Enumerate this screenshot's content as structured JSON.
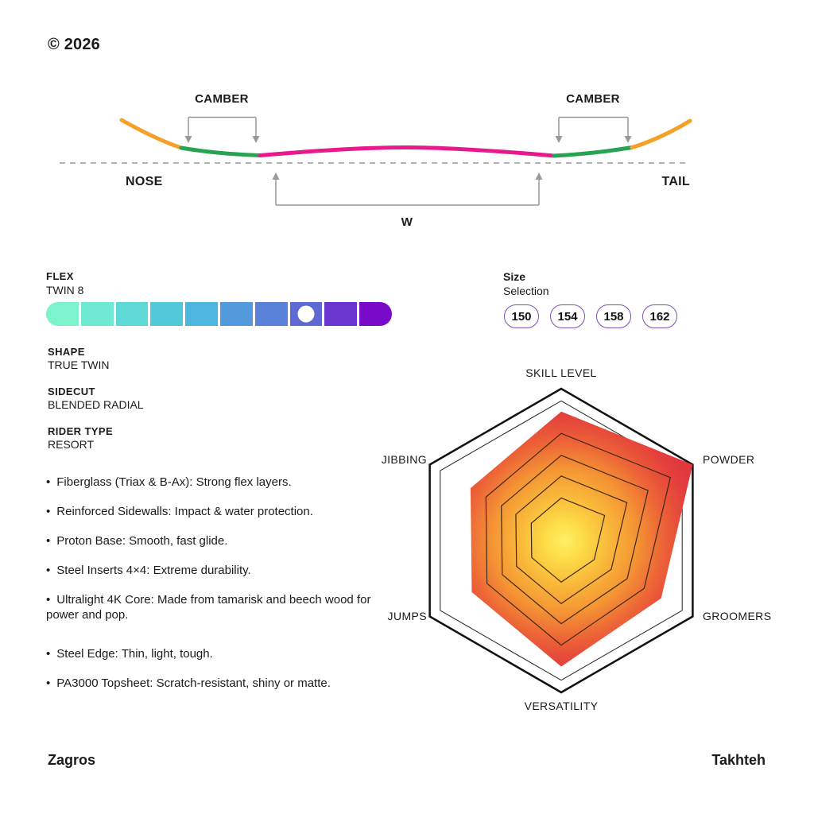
{
  "copyright": "© 2026",
  "profile_diagram": {
    "labels": {
      "camber_left": "CAMBER",
      "camber_right": "CAMBER",
      "nose": "NOSE",
      "tail": "TAIL",
      "width": "W"
    },
    "colors": {
      "tip": "#F5A028",
      "camber_zone": "#27A353",
      "center": "#E8198B",
      "baseline": "#B3B3B3",
      "annotation": "#999999"
    }
  },
  "flex": {
    "label": "FLEX",
    "value": "TWIN 8",
    "level": 8,
    "scale_max": 10,
    "segment_colors": [
      "#7DF3CD",
      "#6FE9D2",
      "#5FD9D6",
      "#52C8DB",
      "#4DB6DF",
      "#5299DD",
      "#5A82D8",
      "#5F69D4",
      "#6B36CF",
      "#7A0ACA"
    ]
  },
  "size": {
    "label": "Size",
    "sublabel": "Selection",
    "options": [
      "150",
      "154",
      "158",
      "162"
    ],
    "outline_color": "#7D4FB5"
  },
  "specs": [
    {
      "label": "SHAPE",
      "value": "TRUE TWIN"
    },
    {
      "label": "SIDECUT",
      "value": "BLENDED RADIAL"
    },
    {
      "label": "RIDER TYPE",
      "value": "RESORT"
    }
  ],
  "features": [
    "Fiberglass (Triax & B-Ax): Strong flex layers.",
    "Reinforced Sidewalls: Impact & water protection.",
    "Proton Base: Smooth, fast glide.",
    "Steel Inserts 4×4: Extreme durability.",
    "Ultralight 4K Core: Made from tamarisk and beech wood for power and pop.",
    "Steel Edge: Thin, light, tough.",
    "PA3000 Topsheet: Scratch-resistant, shiny or matte."
  ],
  "chart_data": {
    "type": "radar",
    "categories": [
      "SKILL LEVEL",
      "POWDER",
      "GROOMERS",
      "VERSATILITY",
      "JUMPS",
      "JIBBING"
    ],
    "values": [
      8.5,
      10,
      7.6,
      8.3,
      6.8,
      6.9
    ],
    "max": 10,
    "grid": {
      "outer_ring": 1.0,
      "second_ring": 0.92,
      "inner_ring_scales": [
        0.83,
        0.66,
        0.5,
        0.33
      ]
    },
    "stroke_colors": {
      "outer": "#111111",
      "second": "#222222",
      "inner": "#3E2817"
    },
    "gradient_stops": [
      {
        "offset": "0%",
        "color": "#FFF066"
      },
      {
        "offset": "14%",
        "color": "#FDDC46"
      },
      {
        "offset": "32%",
        "color": "#F9B93A"
      },
      {
        "offset": "52%",
        "color": "#F49434"
      },
      {
        "offset": "72%",
        "color": "#EC6137"
      },
      {
        "offset": "90%",
        "color": "#E4403C"
      },
      {
        "offset": "100%",
        "color": "#E1383D"
      }
    ],
    "legend": "none",
    "title": ""
  },
  "footer": {
    "left": "Zagros",
    "right": "Takhteh"
  }
}
